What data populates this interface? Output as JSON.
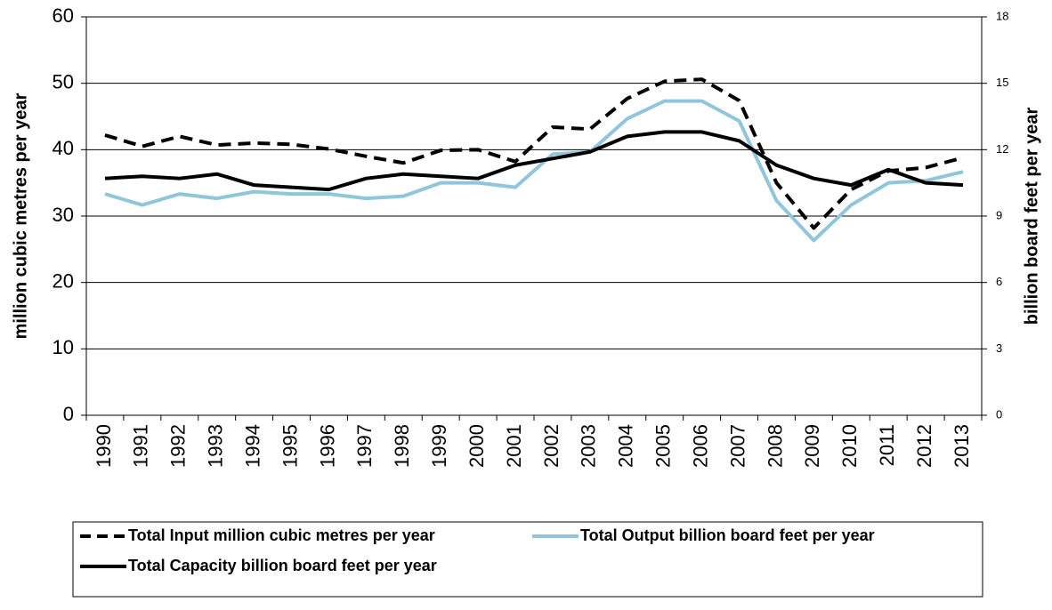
{
  "chart_data": {
    "type": "line",
    "ylabel": "million cubic metres per year",
    "y2label": "billion board feet per year",
    "categories": [
      "1990",
      "1991",
      "1992",
      "1993",
      "1994",
      "1995",
      "1996",
      "1997",
      "1998",
      "1999",
      "2000",
      "2001",
      "2002",
      "2003",
      "2004",
      "2005",
      "2006",
      "2007",
      "2008",
      "2009",
      "2010",
      "2011",
      "2012",
      "2013"
    ],
    "series": [
      {
        "name": "Total Input million cubic metres per year",
        "color": "#000000",
        "dash": true,
        "axis": "y",
        "values": [
          42.2,
          40.5,
          42.0,
          40.7,
          41.0,
          40.8,
          40.1,
          39.0,
          38.0,
          39.9,
          40.0,
          38.2,
          43.4,
          43.1,
          47.7,
          50.3,
          50.6,
          47.4,
          35.0,
          28.2,
          34.0,
          36.8,
          37.3,
          38.8
        ]
      },
      {
        "name": "Total Output billion board feet per year",
        "color": "#8fc6dc",
        "dash": false,
        "axis": "y2",
        "values": [
          10.0,
          9.5,
          10.0,
          9.8,
          10.1,
          10.0,
          10.0,
          9.8,
          9.9,
          10.5,
          10.5,
          10.3,
          11.8,
          11.9,
          13.4,
          14.2,
          14.2,
          13.3,
          9.7,
          7.9,
          9.5,
          10.5,
          10.6,
          11.0
        ]
      },
      {
        "name": "Total Capacity billion board feet per year",
        "color": "#000000",
        "dash": false,
        "axis": "y2",
        "values": [
          10.7,
          10.8,
          10.7,
          10.9,
          10.4,
          10.3,
          10.2,
          10.7,
          10.9,
          10.8,
          10.7,
          11.3,
          11.6,
          11.9,
          12.6,
          12.8,
          12.8,
          12.4,
          11.3,
          10.7,
          10.4,
          11.1,
          10.5,
          10.4
        ]
      }
    ],
    "ylim": [
      0,
      60
    ],
    "yticks": [
      0,
      10,
      20,
      30,
      40,
      50,
      60
    ],
    "y2lim": [
      0,
      18
    ],
    "y2ticks": [
      0,
      3,
      6,
      9,
      12,
      15,
      18
    ],
    "grid": true,
    "legend": "bottom"
  }
}
